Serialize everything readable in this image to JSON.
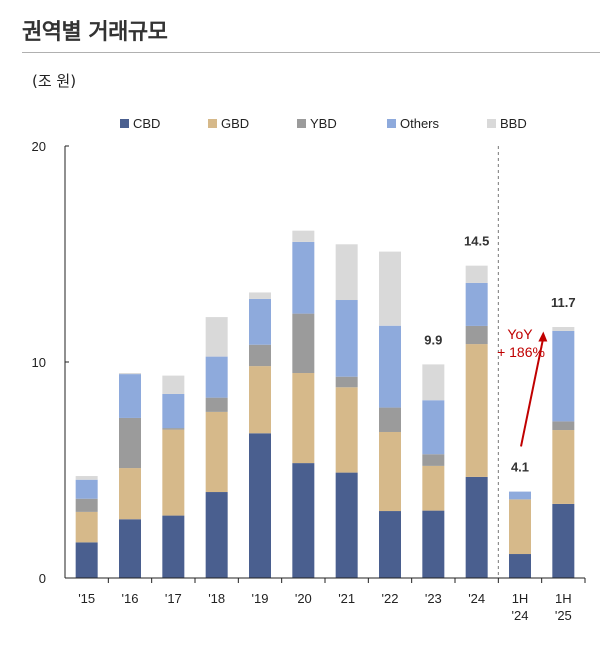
{
  "title": "권역별 거래규모",
  "unit_label": "(조 원)",
  "chart_data": {
    "type": "bar",
    "stacked": true,
    "title": "",
    "xlabel": "",
    "ylabel": "(조 원)",
    "ylim": [
      0,
      20
    ],
    "yticks": [
      0,
      10,
      20
    ],
    "grid": false,
    "legend_position": "top",
    "categories": [
      "'15",
      "'16",
      "'17",
      "'18",
      "'19",
      "'20",
      "'21",
      "'22",
      "'23",
      "'24",
      "1H\n'24",
      "1H\n'25"
    ],
    "series": [
      {
        "name": "CBD",
        "color": "#4a5f8f",
        "values": [
          1.65,
          2.72,
          2.89,
          3.98,
          6.7,
          5.32,
          4.88,
          3.1,
          3.12,
          4.68,
          1.11,
          3.43
        ]
      },
      {
        "name": "GBD",
        "color": "#d6b98a",
        "values": [
          1.41,
          2.37,
          3.98,
          3.71,
          3.11,
          4.17,
          3.95,
          3.66,
          2.07,
          6.15,
          2.53,
          3.42
        ]
      },
      {
        "name": "YBD",
        "color": "#9b9b9b",
        "values": [
          0.61,
          2.32,
          0.07,
          0.66,
          0.99,
          2.75,
          0.49,
          1.13,
          0.54,
          0.84,
          0.0,
          0.4
        ]
      },
      {
        "name": "Others",
        "color": "#8eaadc",
        "values": [
          0.88,
          2.03,
          1.58,
          1.9,
          2.12,
          3.32,
          3.55,
          3.79,
          2.5,
          1.99,
          0.36,
          4.19
        ]
      },
      {
        "name": "BBD",
        "color": "#d9d9d9",
        "values": [
          0.17,
          0.05,
          0.85,
          1.83,
          0.3,
          0.52,
          2.58,
          3.43,
          1.66,
          0.8,
          0.0,
          0.18
        ]
      }
    ],
    "total_labels": [
      {
        "category_index": 8,
        "text": "9.9"
      },
      {
        "category_index": 9,
        "text": "14.5"
      },
      {
        "category_index": 10,
        "text": "4.1"
      },
      {
        "category_index": 11,
        "text": "11.7"
      }
    ],
    "annotation": {
      "line1": "YoY",
      "line2": "+ 186%",
      "color": "#c00000"
    },
    "divider_after_index": 9
  }
}
